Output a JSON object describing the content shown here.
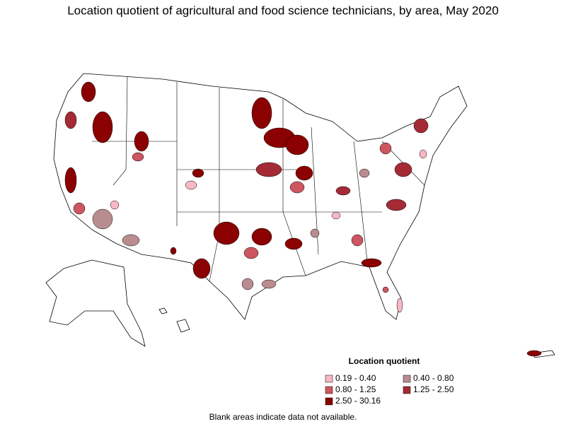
{
  "title": "Location quotient of agricultural and food science technicians, by area, May 2020",
  "legend": {
    "title": "Location quotient",
    "items": [
      {
        "label": "0.19 - 0.40",
        "color": "#f7b8c4"
      },
      {
        "label": "0.40 - 0.80",
        "color": "#b98d90"
      },
      {
        "label": "0.80 - 1.25",
        "color": "#cd5660"
      },
      {
        "label": "1.25 - 2.50",
        "color": "#a52a35"
      },
      {
        "label": "2.50 - 30.16",
        "color": "#8b0000"
      }
    ]
  },
  "note": "Blank areas indicate data not available."
}
